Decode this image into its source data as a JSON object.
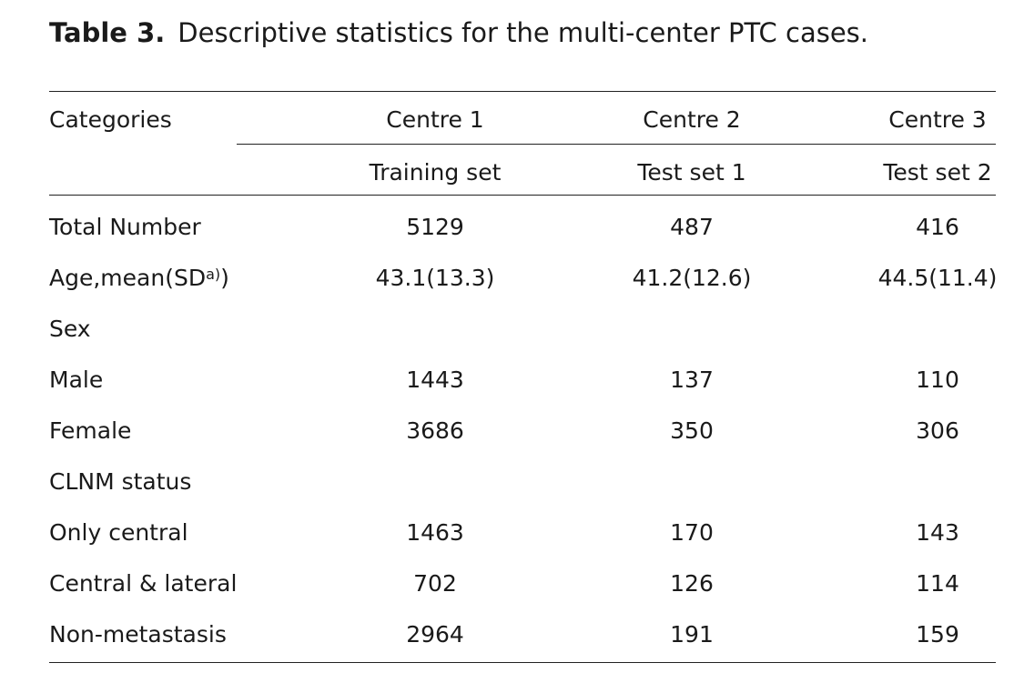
{
  "caption": {
    "label": "Table 3.",
    "text": "Descriptive statistics for the multi-center PTC cases."
  },
  "header": {
    "categories": "Categories",
    "centres": [
      "Centre 1",
      "Centre 2",
      "Centre 3"
    ],
    "sets": [
      "Training set",
      "Test set 1",
      "Test set 2"
    ]
  },
  "rows": [
    {
      "label": "Total Number",
      "values": [
        "5129",
        "487",
        "416"
      ]
    },
    {
      "label": "Age,mean(SD",
      "footnote": "a)",
      "label_suffix": ")",
      "values": [
        "43.1(13.3)",
        "41.2(12.6)",
        "44.5(11.4)"
      ]
    },
    {
      "label": "Sex",
      "values": [
        "",
        "",
        ""
      ]
    },
    {
      "label": "Male",
      "values": [
        "1443",
        "137",
        "110"
      ]
    },
    {
      "label": "Female",
      "values": [
        "3686",
        "350",
        "306"
      ]
    },
    {
      "label": "CLNM status",
      "values": [
        "",
        "",
        ""
      ]
    },
    {
      "label": "Only central",
      "values": [
        "1463",
        "170",
        "143"
      ]
    },
    {
      "label": "Central & lateral",
      "values": [
        "702",
        "126",
        "114"
      ]
    },
    {
      "label": "Non-metastasis",
      "values": [
        "2964",
        "191",
        "159"
      ]
    }
  ]
}
